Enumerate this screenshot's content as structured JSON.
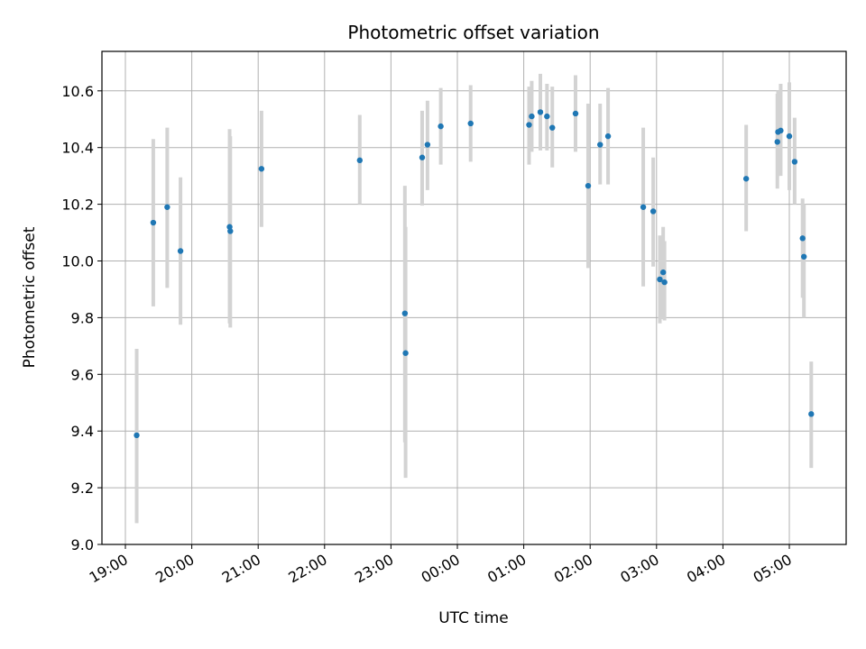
{
  "chart_data": {
    "type": "scatter",
    "title": "Photometric offset variation",
    "xlabel": "UTC time",
    "ylabel": "Photometric offset",
    "ylim": [
      9.0,
      10.75
    ],
    "xlim_hours": [
      -5.35,
      5.85
    ],
    "grid": true,
    "colors": {
      "points": "#1f77b4",
      "errorbars": "#d3d3d3",
      "grid": "#b0b0b0"
    },
    "x_ticks": [
      {
        "h": -5,
        "label": "19:00"
      },
      {
        "h": -4,
        "label": "20:00"
      },
      {
        "h": -3,
        "label": "21:00"
      },
      {
        "h": -2,
        "label": "22:00"
      },
      {
        "h": -1,
        "label": "23:00"
      },
      {
        "h": 0,
        "label": "00:00"
      },
      {
        "h": 1,
        "label": "01:00"
      },
      {
        "h": 2,
        "label": "02:00"
      },
      {
        "h": 3,
        "label": "03:00"
      },
      {
        "h": 4,
        "label": "04:00"
      },
      {
        "h": 5,
        "label": "05:00"
      }
    ],
    "y_ticks": [
      {
        "v": 9.0,
        "label": "9.0"
      },
      {
        "v": 9.2,
        "label": "9.2"
      },
      {
        "v": 9.4,
        "label": "9.4"
      },
      {
        "v": 9.6,
        "label": "9.6"
      },
      {
        "v": 9.8,
        "label": "9.8"
      },
      {
        "v": 10.0,
        "label": "10.0"
      },
      {
        "v": 10.2,
        "label": "10.2"
      },
      {
        "v": 10.4,
        "label": "10.4"
      },
      {
        "v": 10.6,
        "label": "10.6"
      }
    ],
    "points": [
      {
        "h": -4.83,
        "y": 9.385,
        "lo": 9.075,
        "hi": 9.69
      },
      {
        "h": -4.58,
        "y": 10.135,
        "lo": 9.84,
        "hi": 10.43
      },
      {
        "h": -4.37,
        "y": 10.19,
        "lo": 9.905,
        "hi": 10.47
      },
      {
        "h": -4.17,
        "y": 10.035,
        "lo": 9.775,
        "hi": 10.295
      },
      {
        "h": -3.43,
        "y": 10.12,
        "lo": 9.78,
        "hi": 10.465
      },
      {
        "h": -3.42,
        "y": 10.105,
        "lo": 9.765,
        "hi": 10.44
      },
      {
        "h": -2.95,
        "y": 10.325,
        "lo": 10.12,
        "hi": 10.53
      },
      {
        "h": -1.47,
        "y": 10.355,
        "lo": 10.2,
        "hi": 10.515
      },
      {
        "h": -0.79,
        "y": 9.815,
        "lo": 9.36,
        "hi": 10.265
      },
      {
        "h": -0.78,
        "y": 9.675,
        "lo": 9.235,
        "hi": 10.12
      },
      {
        "h": -0.53,
        "y": 10.365,
        "lo": 10.195,
        "hi": 10.53
      },
      {
        "h": -0.45,
        "y": 10.41,
        "lo": 10.25,
        "hi": 10.565
      },
      {
        "h": -0.25,
        "y": 10.475,
        "lo": 10.34,
        "hi": 10.61
      },
      {
        "h": 0.2,
        "y": 10.485,
        "lo": 10.35,
        "hi": 10.62
      },
      {
        "h": 1.08,
        "y": 10.48,
        "lo": 10.34,
        "hi": 10.615
      },
      {
        "h": 1.12,
        "y": 10.51,
        "lo": 10.385,
        "hi": 10.635
      },
      {
        "h": 1.25,
        "y": 10.525,
        "lo": 10.39,
        "hi": 10.66
      },
      {
        "h": 1.35,
        "y": 10.51,
        "lo": 10.39,
        "hi": 10.625
      },
      {
        "h": 1.43,
        "y": 10.47,
        "lo": 10.33,
        "hi": 10.615
      },
      {
        "h": 1.78,
        "y": 10.52,
        "lo": 10.385,
        "hi": 10.655
      },
      {
        "h": 1.97,
        "y": 10.265,
        "lo": 9.975,
        "hi": 10.555
      },
      {
        "h": 2.15,
        "y": 10.41,
        "lo": 10.27,
        "hi": 10.555
      },
      {
        "h": 2.27,
        "y": 10.44,
        "lo": 10.27,
        "hi": 10.61
      },
      {
        "h": 2.8,
        "y": 10.19,
        "lo": 9.91,
        "hi": 10.47
      },
      {
        "h": 2.95,
        "y": 10.175,
        "lo": 9.98,
        "hi": 10.365
      },
      {
        "h": 3.05,
        "y": 9.935,
        "lo": 9.78,
        "hi": 10.09
      },
      {
        "h": 3.1,
        "y": 9.96,
        "lo": 9.795,
        "hi": 10.12
      },
      {
        "h": 3.12,
        "y": 9.925,
        "lo": 9.79,
        "hi": 10.07
      },
      {
        "h": 4.35,
        "y": 10.29,
        "lo": 10.105,
        "hi": 10.48
      },
      {
        "h": 4.82,
        "y": 10.42,
        "lo": 10.255,
        "hi": 10.59
      },
      {
        "h": 4.83,
        "y": 10.455,
        "lo": 10.3,
        "hi": 10.6
      },
      {
        "h": 4.87,
        "y": 10.46,
        "lo": 10.3,
        "hi": 10.625
      },
      {
        "h": 5.0,
        "y": 10.44,
        "lo": 10.25,
        "hi": 10.63
      },
      {
        "h": 5.08,
        "y": 10.35,
        "lo": 10.2,
        "hi": 10.505
      },
      {
        "h": 5.2,
        "y": 10.08,
        "lo": 9.87,
        "hi": 10.22
      },
      {
        "h": 5.22,
        "y": 10.015,
        "lo": 9.8,
        "hi": 10.2
      },
      {
        "h": 5.33,
        "y": 9.46,
        "lo": 9.27,
        "hi": 9.645
      }
    ]
  }
}
